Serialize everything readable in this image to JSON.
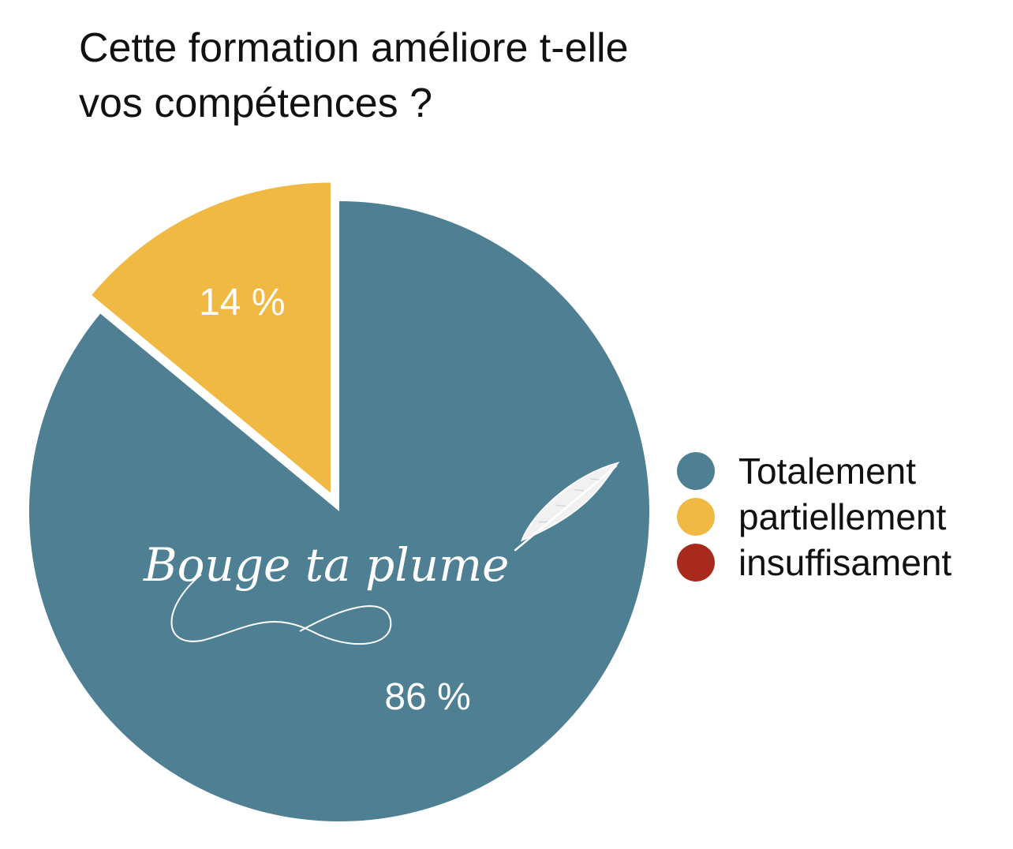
{
  "chart_data": {
    "type": "pie",
    "title_lines": [
      " Cette formation améliore t-elle",
      "vos compétences ?"
    ],
    "categories": [
      "Totalement",
      "partiellement",
      "insuffisament"
    ],
    "values": [
      86,
      14,
      0
    ],
    "value_labels": [
      "86 %",
      "14 %",
      ""
    ],
    "colors": [
      "#4e7f93",
      "#f0b943",
      "#a82a1d"
    ],
    "exploded_slice": "partiellement",
    "legend_position": "right"
  },
  "watermark": {
    "text": "Bouge ta plume",
    "icon": "feather-icon"
  }
}
